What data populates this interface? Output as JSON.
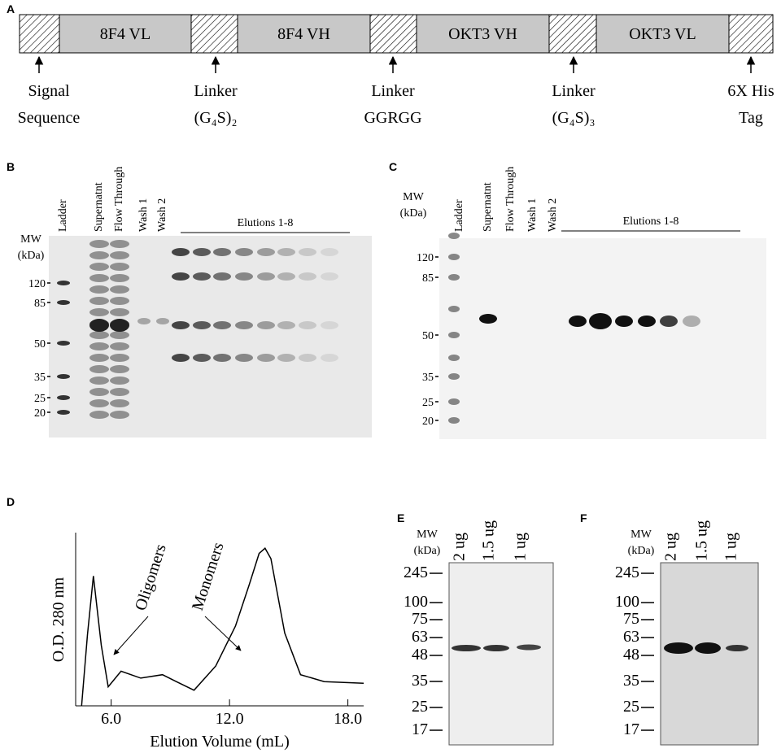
{
  "panel_a": {
    "label": "A",
    "segments": [
      "8F4 VL",
      "8F4 VH",
      "OKT3 VH",
      "OKT3 VL"
    ],
    "annotations": [
      [
        "Signal",
        "Sequence"
      ],
      [
        "Linker",
        "(G₄S)₂"
      ],
      [
        "Linker",
        "GGRGG"
      ],
      [
        "Linker",
        "(G₄S)₃"
      ],
      [
        "6X His",
        "Tag"
      ]
    ]
  },
  "panel_b": {
    "label": "B",
    "mw_label": [
      "MW",
      "(kDa)"
    ],
    "lanes": [
      "Ladder",
      "Supernatnt",
      "Flow Through",
      "Wash 1",
      "Wash 2"
    ],
    "group_label": "Elutions 1-8",
    "markers": [
      "120",
      "85",
      "50",
      "35",
      "25",
      "20"
    ]
  },
  "panel_c": {
    "label": "C",
    "mw_label": [
      "MW",
      "(kDa)"
    ],
    "lanes": [
      "Ladder",
      "Supernatnt",
      "Flow Through",
      "Wash 1",
      "Wash 2"
    ],
    "group_label": "Elutions 1-8",
    "markers": [
      "120",
      "85",
      "50",
      "35",
      "25",
      "20"
    ]
  },
  "chart_data": {
    "type": "line",
    "panel_label": "D",
    "y_label": "O.D. 280 nm",
    "x_label": "Elution Volume (mL)",
    "annotations": [
      "Oligomers",
      "Monomers"
    ],
    "color": "#000000",
    "x": [
      4.5,
      4.8,
      5.1,
      5.5,
      5.85,
      6.5,
      7.5,
      8.6,
      9.3,
      10.2,
      11.3,
      12.3,
      13.0,
      13.5,
      13.8,
      14.1,
      14.8,
      15.6,
      16.8,
      18.8
    ],
    "values": [
      0,
      41,
      75,
      35,
      11,
      20,
      16,
      18,
      14,
      9,
      23,
      46,
      70,
      88,
      91,
      85,
      42,
      18,
      14,
      13
    ],
    "xlim": [
      4.2,
      18.8
    ],
    "xticks": [
      {
        "value": 6,
        "label": "6.0"
      },
      {
        "value": 12,
        "label": "12.0"
      },
      {
        "value": 18,
        "label": "18.0"
      }
    ],
    "ylim": [
      0,
      100
    ]
  },
  "panel_e": {
    "label": "E",
    "mw_label": [
      "MW",
      "(kDa)"
    ],
    "lanes": [
      "2 ug",
      "1.5 ug",
      "1 ug"
    ],
    "markers": [
      "245",
      "100",
      "75",
      "63",
      "48",
      "35",
      "25",
      "17"
    ]
  },
  "panel_f": {
    "label": "F",
    "mw_label": [
      "MW",
      "(kDa)"
    ],
    "lanes": [
      "2 ug",
      "1.5 ug",
      "1 ug"
    ],
    "markers": [
      "245",
      "100",
      "75",
      "63",
      "48",
      "35",
      "25",
      "17"
    ]
  }
}
